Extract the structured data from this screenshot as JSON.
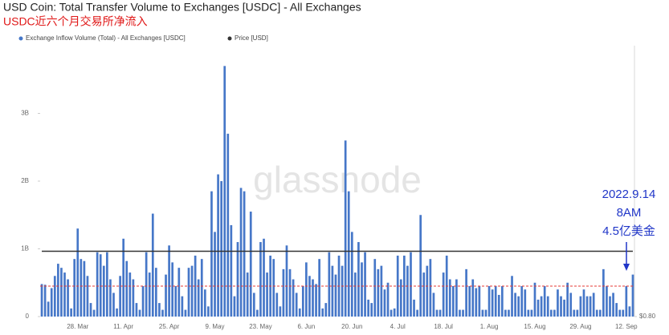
{
  "chart_data": {
    "type": "bar",
    "title": "USD Coin: Total Transfer Volume to Exchanges [USDC] - All Exchanges",
    "subtitle": "USDC近六个月交易所净流入",
    "watermark": "glassnode",
    "annotation": [
      "2022.9.14",
      "8AM",
      "4.5亿美金"
    ],
    "ref_line": {
      "value": 0.45,
      "color": "#e53935"
    },
    "categories": [
      null,
      null,
      null,
      null,
      null,
      null,
      null,
      null,
      null,
      null,
      null,
      "28. Mar",
      null,
      null,
      null,
      null,
      null,
      null,
      null,
      null,
      null,
      null,
      null,
      null,
      null,
      "11. Apr",
      null,
      null,
      null,
      null,
      null,
      null,
      null,
      null,
      null,
      null,
      null,
      null,
      null,
      "25. Apr",
      null,
      null,
      null,
      null,
      null,
      null,
      null,
      null,
      null,
      null,
      null,
      null,
      null,
      "9. May",
      null,
      null,
      null,
      null,
      null,
      null,
      null,
      null,
      null,
      null,
      null,
      null,
      null,
      "23. May",
      null,
      null,
      null,
      null,
      null,
      null,
      null,
      null,
      null,
      null,
      null,
      null,
      null,
      "6. Jun",
      null,
      null,
      null,
      null,
      null,
      null,
      null,
      null,
      null,
      null,
      null,
      null,
      null,
      "20. Jun",
      null,
      null,
      null,
      null,
      null,
      null,
      null,
      null,
      null,
      null,
      null,
      null,
      null,
      "4. Jul",
      null,
      null,
      null,
      null,
      null,
      null,
      null,
      null,
      null,
      null,
      null,
      null,
      null,
      "18. Jul",
      null,
      null,
      null,
      null,
      null,
      null,
      null,
      null,
      null,
      null,
      null,
      null,
      null,
      "1. Aug",
      null,
      null,
      null,
      null,
      null,
      null,
      null,
      null,
      null,
      null,
      null,
      null,
      null,
      "15. Aug",
      null,
      null,
      null,
      null,
      null,
      null,
      null,
      null,
      null,
      null,
      null,
      null,
      null,
      "29. Aug",
      null,
      null,
      null,
      null,
      null,
      null,
      null,
      null,
      null,
      null,
      null,
      null,
      null,
      "12. Sep",
      null,
      null
    ],
    "series": [
      {
        "name": "Exchange Inflow Volume (Total) - All Exchanges [USDC]",
        "color": "#4677c8",
        "values": [
          0.48,
          0.47,
          0.22,
          0.42,
          0.6,
          0.78,
          0.72,
          0.65,
          0.55,
          0.12,
          0.85,
          1.3,
          0.85,
          0.82,
          0.6,
          0.2,
          0.1,
          0.95,
          0.92,
          0.75,
          0.95,
          0.55,
          0.35,
          0.12,
          0.6,
          1.15,
          0.82,
          0.65,
          0.55,
          0.2,
          0.1,
          0.45,
          0.95,
          0.65,
          1.52,
          0.72,
          0.2,
          0.1,
          0.62,
          1.05,
          0.8,
          0.45,
          0.72,
          0.3,
          0.1,
          0.72,
          0.75,
          0.9,
          0.55,
          0.85,
          0.4,
          0.15,
          1.85,
          1.25,
          2.1,
          2.0,
          3.7,
          2.7,
          1.35,
          0.3,
          1.1,
          1.9,
          1.85,
          0.65,
          1.55,
          0.35,
          0.1,
          1.1,
          1.15,
          0.65,
          0.9,
          0.85,
          0.35,
          0.15,
          0.7,
          1.05,
          0.7,
          0.55,
          0.35,
          0.12,
          0.45,
          0.8,
          0.6,
          0.55,
          0.48,
          0.85,
          0.12,
          0.2,
          0.95,
          0.75,
          0.62,
          0.9,
          0.75,
          2.6,
          1.85,
          1.25,
          0.65,
          1.1,
          0.8,
          0.95,
          0.25,
          0.2,
          0.85,
          0.7,
          0.75,
          0.4,
          0.5,
          0.1,
          0.12,
          0.9,
          0.55,
          0.9,
          0.75,
          0.95,
          0.25,
          0.1,
          1.5,
          0.65,
          0.75,
          0.85,
          0.35,
          0.1,
          0.1,
          0.65,
          0.9,
          0.55,
          0.45,
          0.55,
          0.1,
          0.1,
          0.7,
          0.45,
          0.55,
          0.42,
          0.45,
          0.1,
          0.1,
          0.45,
          0.4,
          0.45,
          0.32,
          0.45,
          0.1,
          0.1,
          0.6,
          0.35,
          0.3,
          0.45,
          0.4,
          0.1,
          0.1,
          0.5,
          0.25,
          0.3,
          0.45,
          0.3,
          0.1,
          0.1,
          0.4,
          0.3,
          0.25,
          0.5,
          0.35,
          0.1,
          0.1,
          0.3,
          0.4,
          0.3,
          0.3,
          0.35,
          0.1,
          0.1,
          0.7,
          0.45,
          0.3,
          0.35,
          0.2,
          0.1,
          0.1,
          0.45,
          0.15,
          0.62
        ]
      },
      {
        "name": "Price [USD]",
        "color": "#333333",
        "axis": "y2",
        "values": [
          1,
          1,
          1,
          1,
          1,
          1,
          1,
          1,
          1,
          1,
          1,
          1,
          1,
          1,
          1,
          1,
          1,
          1,
          1,
          1,
          1,
          1,
          1,
          1,
          1,
          1,
          1,
          1,
          1,
          1,
          1,
          1,
          1,
          1,
          1,
          1,
          1,
          1,
          1,
          1,
          1,
          1,
          1,
          1,
          1,
          1,
          1,
          1,
          1,
          1,
          1,
          1,
          1,
          1,
          1,
          1,
          1,
          1,
          1,
          1,
          1,
          1,
          1,
          1,
          1,
          1,
          1,
          1,
          1,
          1,
          1,
          1,
          1,
          1,
          1,
          1,
          1,
          1,
          1,
          1,
          1,
          1,
          1,
          1,
          1,
          1,
          1,
          1,
          1,
          1,
          1,
          1,
          1,
          1,
          1,
          1,
          1,
          1,
          1,
          1,
          1,
          1,
          1,
          1,
          1,
          1,
          1,
          1,
          1,
          1,
          1,
          1,
          1,
          1,
          1,
          1,
          1,
          1,
          1,
          1,
          1,
          1,
          1,
          1,
          1,
          1,
          1,
          1,
          1,
          1,
          1,
          1,
          1,
          1,
          1,
          1,
          1,
          1,
          1,
          1,
          1,
          1,
          1,
          1,
          1,
          1,
          1,
          1,
          1,
          1,
          1,
          1,
          1,
          1,
          1,
          1,
          1,
          1,
          1,
          1,
          1,
          1,
          1,
          1,
          1,
          1,
          1,
          1,
          1,
          1,
          1,
          1,
          1,
          1,
          1,
          1,
          1,
          1,
          1,
          1,
          1,
          1
        ]
      }
    ],
    "ylim": [
      0,
      4
    ],
    "yticks": [
      0,
      {
        "value": 1,
        "label": "1B"
      },
      {
        "value": 2,
        "label": "2B"
      },
      {
        "value": 3,
        "label": "3B"
      }
    ],
    "y2lim": [
      0.8,
      1.63
    ],
    "y2ticks": [
      {
        "value": 0.8,
        "label": "$0.80"
      }
    ]
  }
}
